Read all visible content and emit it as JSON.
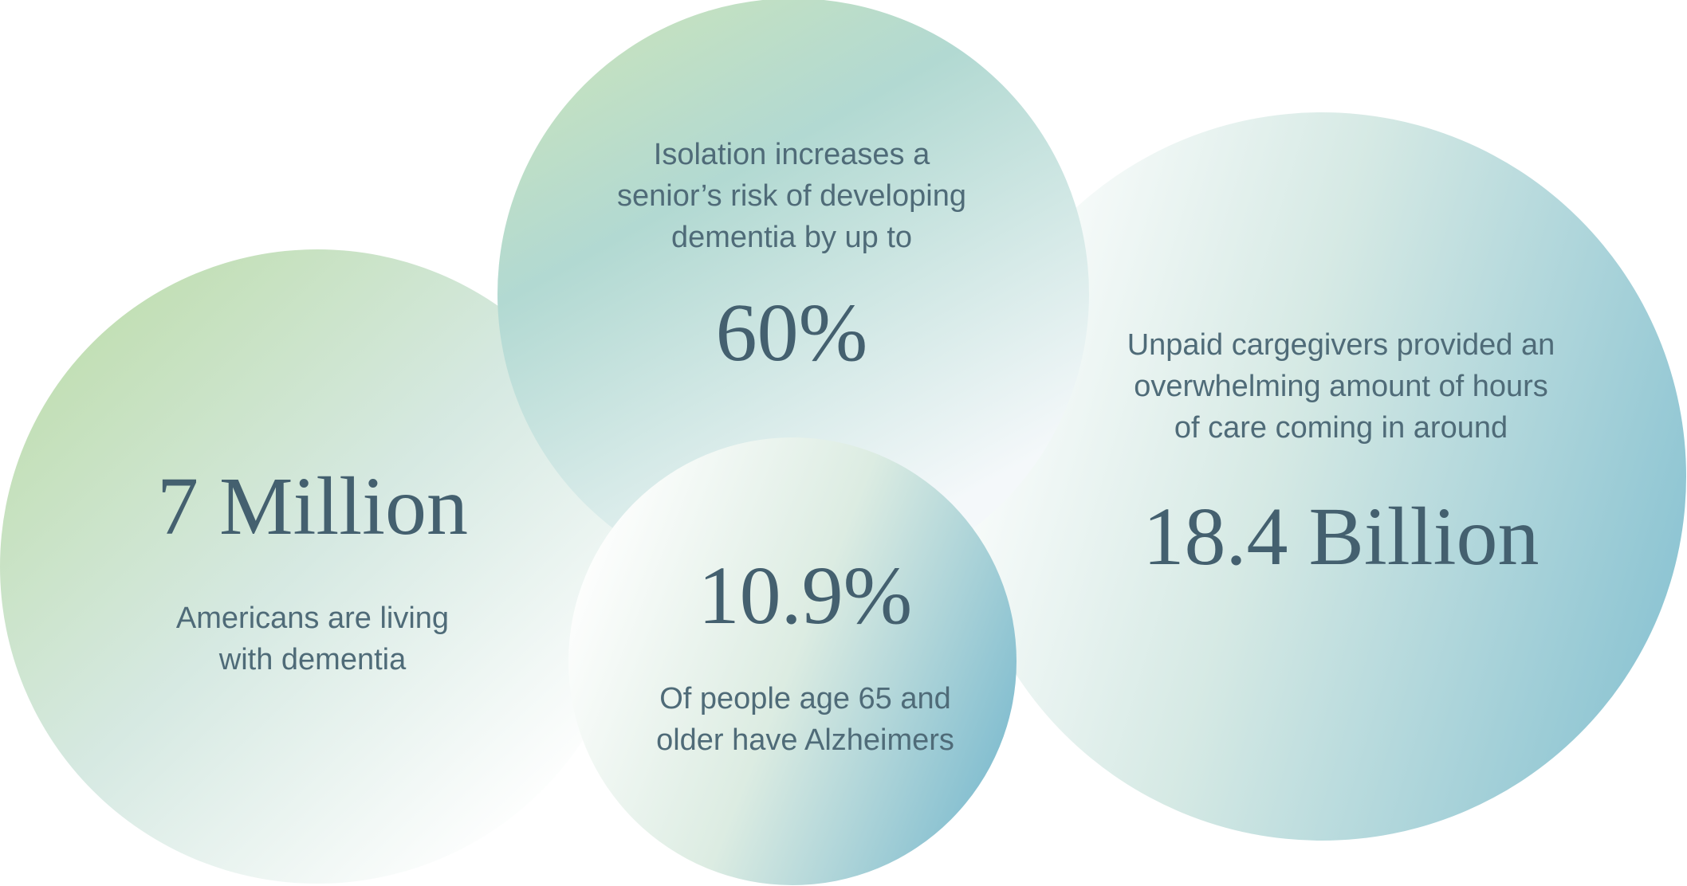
{
  "stats": [
    {
      "value": "7 Million",
      "caption_lines": [
        "Americans are living",
        "with dementia"
      ]
    },
    {
      "value": "60%",
      "caption_lines": [
        "Isolation increases a",
        "senior’s risk of developing",
        "dementia by up to"
      ]
    },
    {
      "value": "18.4 Billion",
      "caption_lines": [
        "Unpaid cargegivers provided an",
        "overwhelming amount of hours",
        "of care coming in around"
      ]
    },
    {
      "value": "10.9%",
      "caption_lines": [
        "Of people age 65 and",
        "older have Alzheimers"
      ]
    }
  ]
}
